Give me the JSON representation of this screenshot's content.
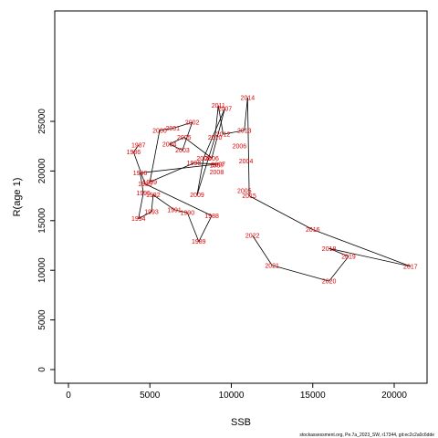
{
  "chart_data": {
    "type": "line",
    "title": "",
    "xlabel": "SSB",
    "ylabel": "R(age 1)",
    "xlim": [
      0,
      21500
    ],
    "ylim": [
      0,
      27500
    ],
    "x_ticks": [
      "0",
      "5000",
      "10000",
      "15000",
      "20000"
    ],
    "y_ticks": [
      "0",
      "5000",
      "10000",
      "15000",
      "20000",
      "25000"
    ],
    "grid": false,
    "line_color": "#000000",
    "label_color": "#e00000",
    "series": [
      {
        "points": [
          {
            "label": "1987",
            "x": 4300,
            "y": 22600
          },
          {
            "label": "1986",
            "x": 4000,
            "y": 21900
          },
          {
            "label": "1985",
            "x": 4700,
            "y": 18700
          },
          {
            "label": "1988",
            "x": 8800,
            "y": 15500
          },
          {
            "label": "1989",
            "x": 8000,
            "y": 12900
          },
          {
            "label": "1990",
            "x": 7300,
            "y": 15800
          },
          {
            "label": "1991",
            "x": 6500,
            "y": 16100
          },
          {
            "label": "1992",
            "x": 5200,
            "y": 17600
          },
          {
            "label": "1993",
            "x": 5100,
            "y": 15900
          },
          {
            "label": "1994",
            "x": 4300,
            "y": 15200
          },
          {
            "label": "1995",
            "x": 4600,
            "y": 17800
          },
          {
            "label": "1996",
            "x": 4400,
            "y": 19800
          },
          {
            "label": "1997",
            "x": 9200,
            "y": 20700
          },
          {
            "label": "1998",
            "x": 7700,
            "y": 20800
          },
          {
            "label": "1999",
            "x": 5000,
            "y": 18900
          },
          {
            "label": "2000",
            "x": 5600,
            "y": 24100
          },
          {
            "label": "2001",
            "x": 6400,
            "y": 24300
          },
          {
            "label": "2002",
            "x": 7600,
            "y": 24900
          },
          {
            "label": "2003",
            "x": 7000,
            "y": 22100
          },
          {
            "label": "2004",
            "x": 6200,
            "y": 22700
          },
          {
            "label": "2005",
            "x": 7100,
            "y": 23400
          },
          {
            "label": "2006",
            "x": 8800,
            "y": 21300
          },
          {
            "label": "2007",
            "x": 9600,
            "y": 26300
          },
          {
            "label": "2008",
            "x": 8300,
            "y": 21300
          },
          {
            "label": "2009",
            "x": 7900,
            "y": 17600
          },
          {
            "label": "2010",
            "x": 9000,
            "y": 23400
          },
          {
            "label": "2011",
            "x": 9200,
            "y": 26600
          },
          {
            "label": "2012",
            "x": 9500,
            "y": 23700
          },
          {
            "label": "2013",
            "x": 10800,
            "y": 24100
          },
          {
            "label": "2014",
            "x": 11000,
            "y": 27400
          },
          {
            "label": "2015",
            "x": 11100,
            "y": 17500
          },
          {
            "label": "2016",
            "x": 15000,
            "y": 14100
          },
          {
            "label": "2017",
            "x": 21000,
            "y": 10400
          },
          {
            "label": "2018",
            "x": 16000,
            "y": 12200
          },
          {
            "label": "2019",
            "x": 17200,
            "y": 11400
          },
          {
            "label": "2020",
            "x": 16000,
            "y": 8900
          },
          {
            "label": "2021",
            "x": 12500,
            "y": 10500
          },
          {
            "label": "2022",
            "x": 11300,
            "y": 13500
          }
        ]
      }
    ],
    "extra_labels": [
      {
        "label": "2008",
        "x": 9100,
        "y": 19900
      },
      {
        "label": "2005",
        "x": 10800,
        "y": 18000
      },
      {
        "label": "2004",
        "x": 10900,
        "y": 21000
      },
      {
        "label": "2006",
        "x": 10500,
        "y": 22500
      },
      {
        "label": "1987",
        "x": 9100,
        "y": 20600
      }
    ]
  },
  "footnote": "stockassessment.org, Pe.7a_2023_SW, r17344, git:ec2c2a0c6dde"
}
